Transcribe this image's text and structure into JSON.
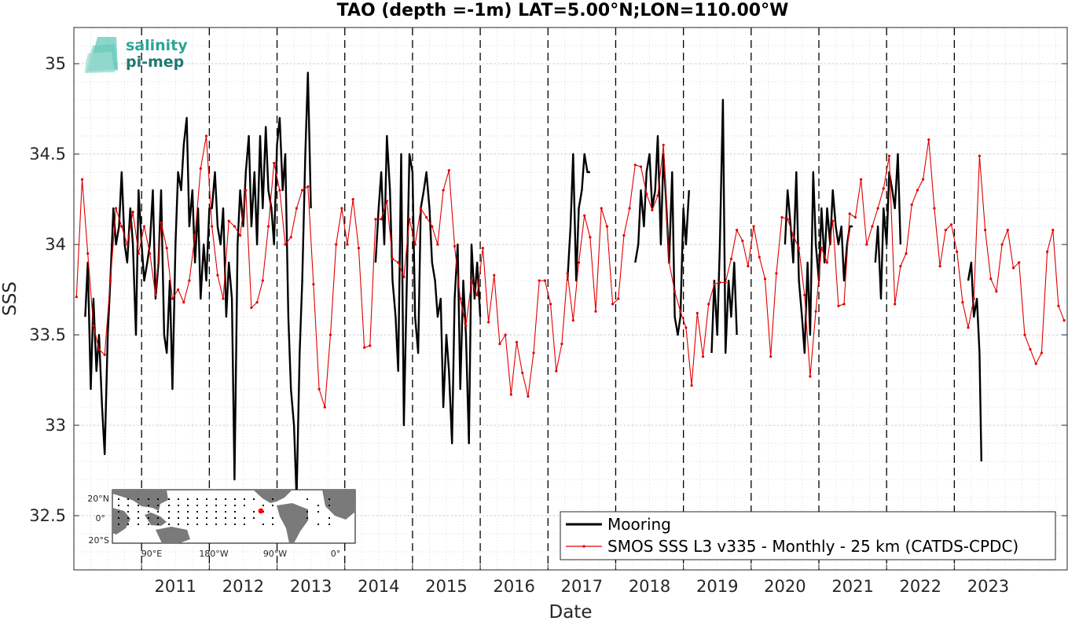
{
  "chart_data": {
    "type": "line",
    "title": "TAO (depth =-1m) LAT=5.00°N;LON=110.00°W",
    "xlabel": "Date",
    "ylabel": "SSS",
    "xlim": [
      "2010-01-01",
      "2024-09-01"
    ],
    "ylim": [
      32.2,
      35.2
    ],
    "yticks": [
      32.5,
      33,
      33.5,
      34,
      34.5,
      35
    ],
    "ytick_labels": [
      "32.5",
      "33",
      "33.5",
      "34",
      "34.5",
      "35"
    ],
    "xticks": [
      "2011",
      "2012",
      "2013",
      "2014",
      "2015",
      "2016",
      "2017",
      "2018",
      "2019",
      "2020",
      "2021",
      "2022",
      "2023"
    ],
    "year_lines": [
      "2011",
      "2012",
      "2013",
      "2014",
      "2015",
      "2016",
      "2017",
      "2018",
      "2019",
      "2020",
      "2021",
      "2022",
      "2023"
    ],
    "grid": true,
    "legend_position": "bottom-right",
    "series": [
      {
        "name": "Mooring",
        "color": "#000000",
        "x": [
          "2010-03-01",
          "2010-03-15",
          "2010-04-01",
          "2010-04-15",
          "2010-05-01",
          "2010-05-15",
          "2010-06-01",
          "2010-06-15",
          "2010-07-01",
          "2010-07-15",
          "2010-08-01",
          "2010-08-15",
          "2010-09-01",
          "2010-09-15",
          "2010-10-01",
          "2010-10-15",
          "2010-11-01",
          "2010-11-15",
          "2010-12-01",
          "2010-12-15",
          "2011-01-01",
          "2011-01-15",
          "2011-02-01",
          "2011-02-15",
          "2011-03-01",
          "2011-03-15",
          "2011-04-01",
          "2011-04-15",
          "2011-05-01",
          "2011-05-15",
          "2011-06-01",
          "2011-06-15",
          "2011-07-01",
          "2011-07-15",
          "2011-08-01",
          "2011-08-15",
          "2011-09-01",
          "2011-09-15",
          "2011-10-01",
          "2011-10-15",
          "2011-11-01",
          "2011-11-15",
          "2011-12-01",
          "2011-12-15",
          "2012-01-01",
          "2012-01-15",
          "2012-02-01",
          "2012-02-15",
          "2012-03-01",
          "2012-03-15",
          "2012-04-01",
          "2012-04-15",
          "2012-05-01",
          "2012-05-15",
          "2012-06-01",
          "2012-06-15",
          "2012-07-01",
          "2012-07-15",
          "2012-08-01",
          "2012-08-15",
          "2012-09-01",
          "2012-09-15",
          "2012-10-01",
          "2012-10-15",
          "2012-11-01",
          "2012-11-15",
          "2012-12-01",
          "2012-12-15",
          "2013-01-01",
          "2013-01-15",
          "2013-02-01",
          "2013-02-15",
          "2013-03-01",
          "2013-03-15",
          "2013-04-01",
          "2013-04-15",
          "2013-05-01",
          "2013-05-15",
          "2013-06-01",
          "2013-06-15",
          "2013-07-01",
          null,
          "2014-06-15",
          "2014-07-01",
          "2014-07-15",
          "2014-08-01",
          "2014-08-15",
          "2014-09-01",
          "2014-09-15",
          "2014-10-01",
          "2014-10-15",
          "2014-11-01",
          "2014-11-15",
          "2014-12-01",
          "2014-12-15",
          "2015-01-01",
          "2015-01-15",
          "2015-02-01",
          "2015-02-15",
          "2015-03-01",
          "2015-03-15",
          "2015-04-01",
          "2015-04-15",
          "2015-05-01",
          "2015-05-15",
          "2015-06-01",
          "2015-06-15",
          "2015-07-01",
          "2015-07-15",
          "2015-08-01",
          "2015-08-15",
          "2015-09-01",
          "2015-09-15",
          "2015-10-01",
          "2015-10-15",
          "2015-11-01",
          "2015-11-15",
          "2015-12-01",
          "2015-12-15",
          "2016-01-01",
          null,
          "2017-04-15",
          "2017-05-01",
          "2017-05-15",
          "2017-06-01",
          "2017-06-15",
          "2017-07-01",
          "2017-07-15",
          "2017-08-01",
          "2017-08-15",
          null,
          "2018-04-15",
          "2018-05-01",
          "2018-05-15",
          "2018-06-01",
          "2018-06-15",
          "2018-07-01",
          "2018-07-15",
          "2018-08-01",
          "2018-08-15",
          "2018-09-01",
          "2018-09-15",
          "2018-10-01",
          "2018-10-15",
          "2018-11-01",
          "2018-11-15",
          "2018-12-01",
          "2018-12-15",
          "2019-01-01",
          "2019-01-15",
          "2019-02-01",
          null,
          "2019-06-01",
          "2019-06-15",
          "2019-07-01",
          "2019-07-15",
          "2019-08-01",
          "2019-08-15",
          "2019-09-01",
          "2019-09-15",
          "2019-10-01",
          "2019-10-15",
          null,
          "2020-07-01",
          "2020-07-15",
          "2020-08-01",
          "2020-08-15",
          "2020-09-01",
          "2020-09-15",
          "2020-10-01",
          "2020-10-15",
          "2020-11-01",
          "2020-11-15",
          "2020-12-01",
          "2020-12-15",
          "2021-01-01",
          "2021-01-15",
          "2021-02-01",
          "2021-02-15",
          "2021-03-01",
          "2021-03-15",
          "2021-04-01",
          "2021-04-15",
          "2021-05-01",
          "2021-05-15",
          "2021-06-01",
          "2021-06-15",
          "2021-07-01",
          null,
          "2021-11-01",
          "2021-11-15",
          "2021-12-01",
          "2021-12-15",
          "2022-01-01",
          "2022-01-15",
          "2022-02-01",
          "2022-02-15",
          "2022-03-01",
          "2022-03-15",
          null,
          "2023-03-15",
          "2023-04-01",
          "2023-04-15",
          "2023-05-01",
          "2023-05-15",
          "2023-05-25"
        ],
        "values": [
          33.6,
          33.9,
          33.2,
          33.7,
          33.3,
          33.5,
          33.1,
          32.84,
          33.5,
          33.8,
          34.2,
          34.0,
          34.1,
          34.4,
          34.0,
          33.9,
          34.2,
          34.0,
          33.5,
          34.3,
          34.0,
          33.8,
          33.9,
          34.0,
          34.3,
          33.7,
          33.9,
          34.3,
          33.5,
          33.4,
          33.8,
          33.2,
          34.0,
          34.4,
          34.3,
          34.55,
          34.7,
          34.1,
          34.3,
          33.9,
          34.2,
          33.7,
          34.0,
          33.8,
          34.2,
          34.2,
          34.4,
          34.1,
          34.0,
          34.2,
          33.6,
          33.9,
          33.7,
          32.7,
          34.0,
          34.3,
          34.1,
          34.4,
          34.6,
          34.1,
          34.4,
          34.0,
          34.6,
          34.2,
          34.65,
          34.3,
          34.2,
          34.0,
          34.55,
          34.7,
          34.3,
          34.5,
          33.6,
          33.2,
          33.0,
          32.6,
          33.4,
          33.8,
          34.5,
          34.95,
          34.2,
          null,
          33.9,
          34.2,
          34.4,
          34.0,
          34.6,
          34.3,
          33.8,
          33.6,
          33.3,
          34.5,
          33.0,
          33.8,
          34.5,
          34.4,
          33.6,
          33.4,
          34.2,
          34.3,
          34.4,
          34.2,
          33.9,
          33.8,
          33.6,
          33.7,
          33.1,
          33.5,
          33.3,
          32.9,
          33.7,
          34.0,
          33.2,
          33.8,
          33.5,
          32.9,
          34.0,
          33.7,
          33.9,
          33.6,
          null,
          33.8,
          34.1,
          34.5,
          33.8,
          34.2,
          34.3,
          34.5,
          34.4,
          34.4,
          null,
          33.9,
          34.0,
          34.3,
          34.1,
          34.4,
          34.5,
          34.2,
          34.3,
          34.6,
          34.0,
          34.5,
          34.2,
          33.9,
          34.4,
          33.6,
          33.5,
          33.6,
          34.2,
          34.0,
          34.3,
          null,
          33.4,
          33.8,
          33.5,
          34.0,
          34.8,
          33.4,
          33.8,
          33.6,
          33.9,
          33.5,
          null,
          34.0,
          34.3,
          34.1,
          33.9,
          34.4,
          33.8,
          33.6,
          33.4,
          33.9,
          33.5,
          34.4,
          34.0,
          33.8,
          34.2,
          33.9,
          34.2,
          34.0,
          34.3,
          34.1,
          34.0,
          34.1,
          33.8,
          34.0,
          34.1,
          34.1,
          null,
          33.9,
          34.1,
          33.7,
          34.2,
          34.0,
          34.4,
          34.3,
          34.2,
          34.5,
          34.0,
          null,
          33.8,
          33.9,
          33.6,
          33.7,
          33.4,
          32.8
        ]
      },
      {
        "name": "SMOS SSS L3 v335 - Monthly - 25 km (CATDS-CPDC)",
        "color": "#e00000",
        "x": [
          "2010-01-15",
          "2010-02-15",
          "2010-03-15",
          "2010-04-15",
          "2010-05-15",
          "2010-06-15",
          "2010-07-15",
          "2010-08-15",
          "2010-09-15",
          "2010-10-15",
          "2010-11-15",
          "2010-12-15",
          "2011-01-15",
          "2011-02-15",
          "2011-03-15",
          "2011-04-15",
          "2011-05-15",
          "2011-06-15",
          "2011-07-15",
          "2011-08-15",
          "2011-09-15",
          "2011-10-15",
          "2011-11-15",
          "2011-12-15",
          "2012-01-15",
          "2012-02-15",
          "2012-03-15",
          "2012-04-15",
          "2012-05-15",
          "2012-06-15",
          "2012-07-15",
          "2012-08-15",
          "2012-09-15",
          "2012-10-15",
          "2012-11-15",
          "2012-12-15",
          "2013-01-15",
          "2013-02-15",
          "2013-03-15",
          "2013-04-15",
          "2013-05-15",
          "2013-06-15",
          "2013-07-15",
          "2013-08-15",
          "2013-09-15",
          "2013-10-15",
          "2013-11-15",
          "2013-12-15",
          "2014-01-15",
          "2014-02-15",
          "2014-03-15",
          "2014-04-15",
          "2014-05-15",
          "2014-06-15",
          "2014-07-15",
          "2014-08-15",
          "2014-09-15",
          "2014-10-15",
          "2014-11-15",
          "2014-12-15",
          "2015-01-15",
          "2015-02-15",
          "2015-03-15",
          "2015-04-15",
          "2015-05-15",
          "2015-06-15",
          "2015-07-15",
          "2015-08-15",
          "2015-09-15",
          "2015-10-15",
          "2015-11-15",
          "2015-12-15",
          "2016-01-15",
          "2016-02-15",
          "2016-03-15",
          "2016-04-15",
          "2016-05-15",
          "2016-06-15",
          "2016-07-15",
          "2016-08-15",
          "2016-09-15",
          "2016-10-15",
          "2016-11-15",
          "2016-12-15",
          "2017-01-15",
          "2017-02-15",
          "2017-03-15",
          "2017-04-15",
          "2017-05-15",
          "2017-06-15",
          "2017-07-15",
          "2017-08-15",
          "2017-09-15",
          "2017-10-15",
          "2017-11-15",
          "2017-12-15",
          "2018-01-15",
          "2018-02-15",
          "2018-03-15",
          "2018-04-15",
          "2018-05-15",
          "2018-06-15",
          "2018-07-15",
          "2018-08-15",
          "2018-09-15",
          "2018-10-15",
          "2018-11-15",
          "2018-12-15",
          "2019-01-15",
          "2019-02-15",
          "2019-03-15",
          "2019-04-15",
          "2019-05-15",
          "2019-06-15",
          "2019-07-15",
          "2019-08-15",
          "2019-09-15",
          "2019-10-15",
          "2019-11-15",
          "2019-12-15",
          "2020-01-15",
          "2020-02-15",
          "2020-03-15",
          "2020-04-15",
          "2020-05-15",
          "2020-06-15",
          "2020-07-15",
          "2020-08-15",
          "2020-09-15",
          "2020-10-15",
          "2020-11-15",
          "2020-12-15",
          "2021-01-15",
          "2021-02-15",
          "2021-03-15",
          "2021-04-15",
          "2021-05-15",
          "2021-06-15",
          "2021-07-15",
          "2021-08-15",
          "2021-09-15",
          "2021-10-15",
          "2021-11-15",
          "2021-12-15",
          "2022-01-15",
          "2022-02-15",
          "2022-03-15",
          "2022-04-15",
          "2022-05-15",
          "2022-06-15",
          "2022-07-15",
          "2022-08-15",
          "2022-09-15",
          "2022-10-15",
          "2022-11-15",
          "2022-12-15",
          "2023-01-15",
          "2023-02-15",
          "2023-03-15",
          "2023-04-15",
          "2023-05-15",
          "2023-06-15",
          "2023-07-15",
          "2023-08-15",
          "2023-09-15",
          "2023-10-15",
          "2023-11-15",
          "2023-12-15",
          "2024-01-15",
          "2024-02-15",
          "2024-03-15",
          "2024-04-15",
          "2024-05-15",
          "2024-06-15",
          "2024-07-15",
          "2024-08-15"
        ],
        "values": [
          33.71,
          34.36,
          33.95,
          33.55,
          33.42,
          33.39,
          33.8,
          34.2,
          34.1,
          34.0,
          34.18,
          33.95,
          34.1,
          33.95,
          33.72,
          34.12,
          33.98,
          33.7,
          33.75,
          33.68,
          33.8,
          34.05,
          34.42,
          34.6,
          34.1,
          33.83,
          33.7,
          34.13,
          34.1,
          34.05,
          34.3,
          33.65,
          33.68,
          33.8,
          34.1,
          34.45,
          34.3,
          34.0,
          34.04,
          34.2,
          34.3,
          34.32,
          33.78,
          33.2,
          33.1,
          33.5,
          34.0,
          34.2,
          34.0,
          34.25,
          33.98,
          33.43,
          33.44,
          34.14,
          34.14,
          34.24,
          33.92,
          33.9,
          33.82,
          34.14,
          34.0,
          34.2,
          34.15,
          34.1,
          34.0,
          34.3,
          34.41,
          33.99,
          33.7,
          33.55,
          33.8,
          33.72,
          33.98,
          33.57,
          33.83,
          33.45,
          33.5,
          33.17,
          33.46,
          33.29,
          33.16,
          33.4,
          33.8,
          33.8,
          33.67,
          33.3,
          33.45,
          33.84,
          33.58,
          33.9,
          34.16,
          34.04,
          33.63,
          34.2,
          34.1,
          33.67,
          33.7,
          34.05,
          34.2,
          34.44,
          34.43,
          34.28,
          34.19,
          34.27,
          34.55,
          33.9,
          33.74,
          33.63,
          33.54,
          33.22,
          33.62,
          33.38,
          33.67,
          33.78,
          33.79,
          33.79,
          33.92,
          34.08,
          34.02,
          33.88,
          34.1,
          33.93,
          33.81,
          33.38,
          33.84,
          34.15,
          34.14,
          34.05,
          33.98,
          33.72,
          33.27,
          33.63,
          33.98,
          33.9,
          34.13,
          33.66,
          33.67,
          34.17,
          34.15,
          34.36,
          34.0,
          34.1,
          34.2,
          34.31,
          34.49,
          33.67,
          33.88,
          33.95,
          34.22,
          34.3,
          34.36,
          34.58,
          34.2,
          33.88,
          34.08,
          34.11,
          33.96,
          33.68,
          33.54,
          33.7,
          34.49,
          34.08,
          33.81,
          33.74,
          34.0,
          34.08,
          33.87,
          33.9,
          33.5,
          33.42,
          33.34,
          33.4,
          33.96,
          34.08,
          33.66,
          33.58
        ]
      }
    ]
  },
  "logo": {
    "line1": "salinity",
    "line2": "pi-mep"
  },
  "inset_map": {
    "y_labels": [
      "20°N",
      "0°",
      "20°S"
    ],
    "x_labels": [
      "90°E",
      "180°W",
      "90°W",
      "0°"
    ]
  }
}
